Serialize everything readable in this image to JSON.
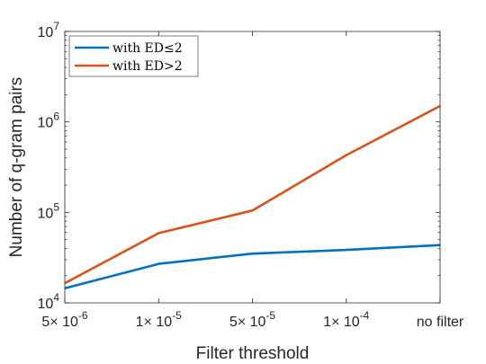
{
  "chart_data": {
    "type": "line",
    "title": "",
    "xlabel": "Filter threshold",
    "ylabel": "Number of q-gram pairs",
    "yscale": "log",
    "ylim": [
      10000,
      10000000
    ],
    "categories": [
      "5× 10^-6",
      "1× 10^-5",
      "5× 10^-5",
      "1× 10^-4",
      "no filter"
    ],
    "x_tick_labels": [
      {
        "mant": "5×",
        "base": "10",
        "exp": "-6"
      },
      {
        "mant": "1×",
        "base": "10",
        "exp": "-5"
      },
      {
        "mant": "5×",
        "base": "10",
        "exp": "-5"
      },
      {
        "mant": "1×",
        "base": "10",
        "exp": "-4"
      },
      {
        "text": "no filter"
      }
    ],
    "y_ticks": [
      {
        "value": 10000,
        "base": "10",
        "exp": "4"
      },
      {
        "value": 100000,
        "base": "10",
        "exp": "5"
      },
      {
        "value": 1000000,
        "base": "10",
        "exp": "6"
      },
      {
        "value": 10000000,
        "base": "10",
        "exp": "7"
      }
    ],
    "series": [
      {
        "name": "with ED≤2",
        "color": "#0072BD",
        "values": [
          14500,
          27000,
          35000,
          38500,
          43500
        ]
      },
      {
        "name": "with ED>2",
        "color": "#D95319",
        "values": [
          16500,
          59000,
          105000,
          430000,
          1500000
        ]
      }
    ],
    "legend": "top-left",
    "grid": false
  }
}
